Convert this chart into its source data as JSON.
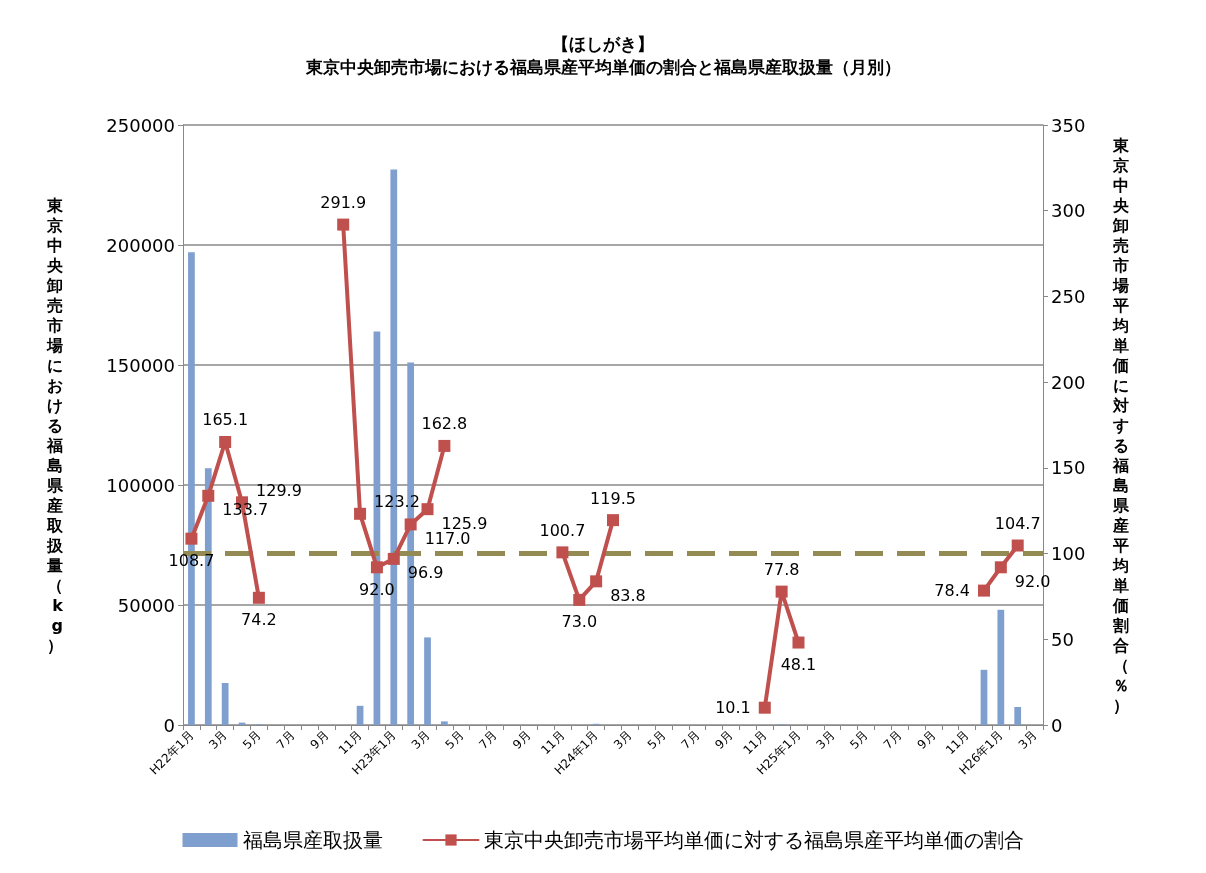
{
  "chart_data": {
    "type": "bar",
    "title": "【ほしがき】",
    "subtitle": "東京中央卸売市場における福島県産平均単価の割合と福島県産取扱量（月別）",
    "ylabel": "東京中央卸売市場における福島県産取扱量（kg）",
    "y2label": "東京中央卸売市場平均単価に対する福島県産平均単価割合（％）",
    "categories": [
      "H22年1月",
      null,
      "3月",
      null,
      "5月",
      null,
      "7月",
      null,
      "9月",
      null,
      "11月",
      null,
      "H23年1月",
      null,
      "3月",
      null,
      "5月",
      null,
      "7月",
      null,
      "9月",
      null,
      "11月",
      null,
      "H24年1月",
      null,
      "3月",
      null,
      "5月",
      null,
      "7月",
      null,
      "9月",
      null,
      "11月",
      null,
      "H25年1月",
      null,
      "3月",
      null,
      "5月",
      null,
      "7月",
      null,
      "9月",
      null,
      "11月",
      null,
      "H26年1月",
      null,
      "3月"
    ],
    "series": [
      {
        "name": "福島県産取扱量",
        "color": "#7f9fcf",
        "values": [
          197000,
          107000,
          17500,
          1000,
          300,
          0,
          0,
          0,
          0,
          0,
          8000,
          164000,
          231500,
          151000,
          36500,
          1500,
          0,
          0,
          0,
          0,
          0,
          0,
          0,
          0,
          500,
          0,
          0,
          0,
          0,
          0,
          0,
          0,
          0,
          0,
          null,
          300,
          0,
          0,
          0,
          0,
          0,
          0,
          0,
          0,
          0,
          0,
          0,
          23000,
          48000,
          7500,
          0
        ]
      },
      {
        "name": "東京中央卸売市場平均単価に対する福島県産平均単価の割合",
        "type": "line",
        "axis": "y2",
        "color": "#c0504d",
        "value_labels": [
          "108.7",
          "133.7",
          "165.1",
          "129.9",
          "74.2",
          null,
          null,
          null,
          null,
          "291.9",
          "123.2",
          "92.0",
          "96.9",
          "117.0",
          "125.9",
          "162.8",
          null,
          null,
          null,
          null,
          null,
          null,
          "100.7",
          "73.0",
          "83.8",
          "119.5",
          null,
          null,
          null,
          null,
          null,
          null,
          null,
          null,
          "10.1",
          "77.8",
          "48.1",
          null,
          null,
          null,
          null,
          null,
          null,
          null,
          null,
          null,
          null,
          "78.4",
          "92.0",
          "104.7",
          null
        ],
        "values": [
          108.7,
          133.7,
          165.1,
          129.9,
          74.2,
          null,
          null,
          null,
          null,
          291.9,
          123.2,
          92.0,
          96.9,
          117.0,
          125.9,
          162.8,
          null,
          null,
          null,
          null,
          null,
          null,
          100.7,
          73.0,
          83.8,
          119.5,
          null,
          null,
          null,
          null,
          null,
          null,
          null,
          null,
          10.1,
          77.8,
          48.1,
          null,
          null,
          null,
          null,
          null,
          null,
          null,
          null,
          null,
          null,
          78.4,
          92.0,
          104.7,
          null
        ]
      }
    ],
    "ylim": [
      0,
      250000
    ],
    "yticks": [
      0,
      50000,
      100000,
      150000,
      200000,
      250000
    ],
    "y2lim": [
      0,
      350
    ],
    "y2ticks": [
      0,
      50,
      100,
      150,
      200,
      250,
      300,
      350
    ],
    "ref_lines": [
      {
        "axis": "y2",
        "value": 100,
        "color": "#948a54",
        "line_style": "dashed"
      }
    ],
    "grid": "y",
    "legend": "bottom",
    "marker": "square",
    "line_style": "solid"
  }
}
